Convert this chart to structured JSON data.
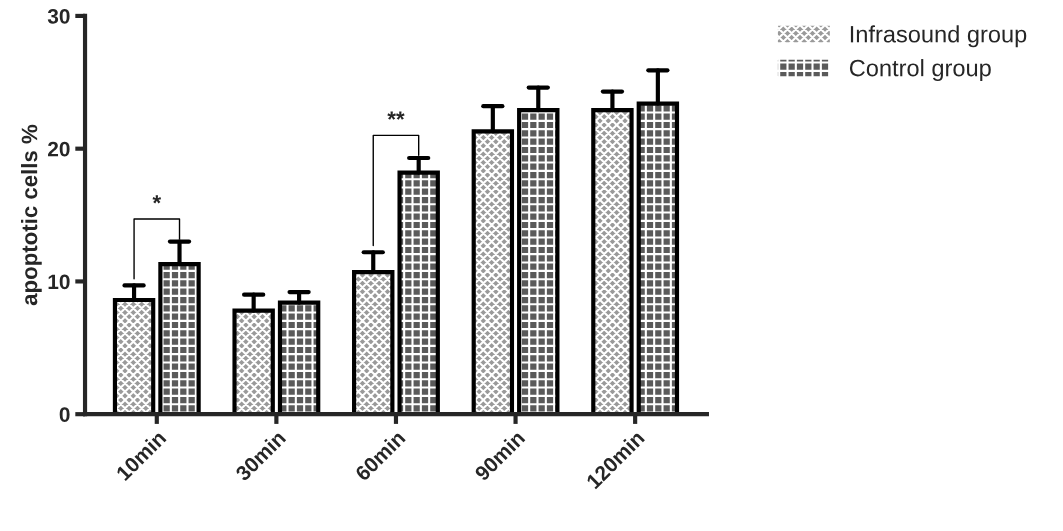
{
  "chart_data": {
    "type": "bar",
    "ylabel": "apoptotic cells %",
    "categories": [
      "10min",
      "30min",
      "60min",
      "90min",
      "120min"
    ],
    "series": [
      {
        "name": "Infrasound group",
        "color": "#9a9a9a",
        "values": [
          8.6,
          7.8,
          10.7,
          21.3,
          22.9
        ],
        "errors": [
          [
            8.6,
            9.7
          ],
          [
            7.8,
            9.0
          ],
          [
            10.7,
            12.2
          ],
          [
            21.3,
            23.2
          ],
          [
            22.9,
            24.3
          ]
        ]
      },
      {
        "name": "Control group",
        "color": "#5a5a5a",
        "values": [
          11.3,
          8.4,
          18.2,
          22.9,
          23.4
        ],
        "errors": [
          [
            11.3,
            13.0
          ],
          [
            8.4,
            9.2
          ],
          [
            18.2,
            19.3
          ],
          [
            22.9,
            24.6
          ],
          [
            23.4,
            25.9
          ]
        ]
      }
    ],
    "ylim": [
      0,
      30
    ],
    "yticks": [
      0,
      10,
      20,
      30
    ],
    "grid": false,
    "legend": "top right",
    "annotations": [
      {
        "text": "*",
        "x": "10min",
        "y": 11.3
      },
      {
        "text": "**",
        "x": "60min",
        "y": 18.2
      }
    ]
  }
}
